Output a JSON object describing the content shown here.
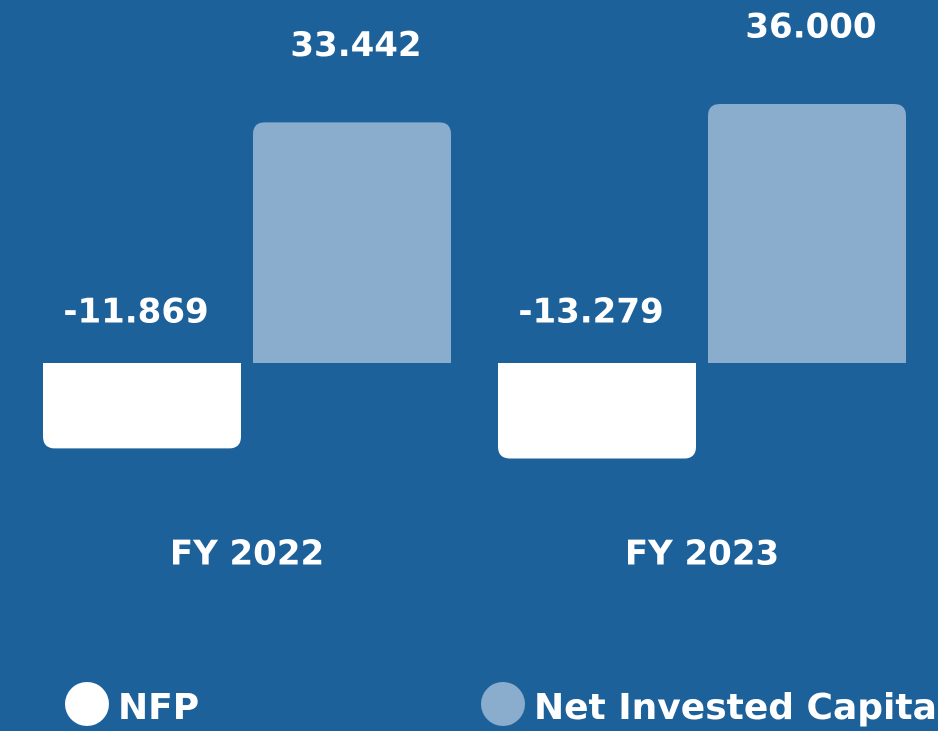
{
  "chart_data": {
    "type": "bar",
    "categories": [
      "FY 2022",
      "FY 2023"
    ],
    "series": [
      {
        "name": "NFP",
        "color": "#ffffff",
        "values": [
          -11869,
          -13279
        ],
        "value_labels": [
          "-11.869",
          "-13.279"
        ]
      },
      {
        "name": "Net Invested Capital",
        "color": "#8aadcd",
        "values": [
          33442,
          36000
        ],
        "value_labels": [
          "33.442",
          "36.000"
        ]
      }
    ],
    "legend": "bottom"
  }
}
